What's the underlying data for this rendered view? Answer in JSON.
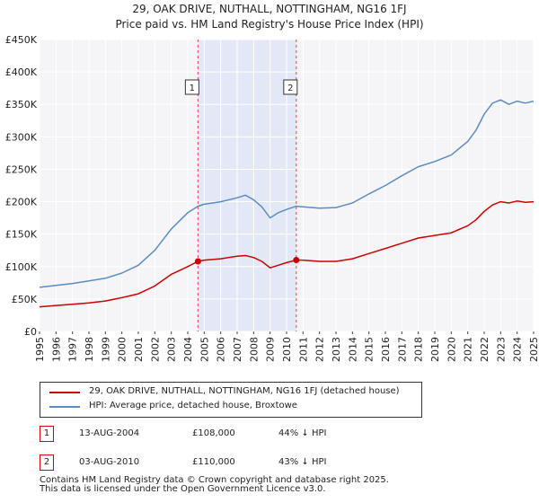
{
  "title_line1": "29, OAK DRIVE, NUTHALL, NOTTINGHAM, NG16 1FJ",
  "title_line2": "Price paid vs. HM Land Registry's House Price Index (HPI)",
  "chart_data": {
    "type": "line",
    "xlim": [
      1995,
      2025
    ],
    "ylim": [
      0,
      450000
    ],
    "y_ticks": [
      0,
      50000,
      100000,
      150000,
      200000,
      250000,
      300000,
      350000,
      400000,
      450000
    ],
    "y_tick_labels": [
      "£0",
      "£50K",
      "£100K",
      "£150K",
      "£200K",
      "£250K",
      "£300K",
      "£350K",
      "£400K",
      "£450K"
    ],
    "x_ticks": [
      1995,
      1996,
      1997,
      1998,
      1999,
      2000,
      2001,
      2002,
      2003,
      2004,
      2005,
      2006,
      2007,
      2008,
      2009,
      2010,
      2011,
      2012,
      2013,
      2014,
      2015,
      2016,
      2017,
      2018,
      2019,
      2020,
      2021,
      2022,
      2023,
      2024,
      2025
    ],
    "x_tick_labels": [
      "1995",
      "1996",
      "1997",
      "1998",
      "1999",
      "2000",
      "2001",
      "2002",
      "2003",
      "2004",
      "2005",
      "2006",
      "2007",
      "2008",
      "2009",
      "2010",
      "2011",
      "2012",
      "2013",
      "2014",
      "2015",
      "2016",
      "2017",
      "2018",
      "2019",
      "2020",
      "2021",
      "2022",
      "2023",
      "2024",
      "2025"
    ],
    "grid": true,
    "shaded_span": [
      2004.62,
      2010.59
    ],
    "series": [
      {
        "name": "29, OAK DRIVE, NUTHALL, NOTTINGHAM, NG16 1FJ (detached house)",
        "color": "#cc0000",
        "x": [
          1995,
          1996,
          1997,
          1998,
          1999,
          2000,
          2001,
          2002,
          2003,
          2004,
          2004.62,
          2005,
          2006,
          2007,
          2007.5,
          2008,
          2008.5,
          2009,
          2009.5,
          2010,
          2010.59,
          2011,
          2012,
          2013,
          2014,
          2015,
          2016,
          2017,
          2018,
          2019,
          2020,
          2021,
          2021.5,
          2022,
          2022.5,
          2023,
          2023.5,
          2024,
          2024.5,
          2025
        ],
        "values": [
          38000,
          40000,
          42000,
          44000,
          47000,
          52000,
          58000,
          70000,
          88000,
          100000,
          108000,
          110000,
          112000,
          116000,
          117000,
          114000,
          108000,
          98000,
          102000,
          106000,
          110000,
          110000,
          108000,
          108000,
          112000,
          120000,
          128000,
          136000,
          144000,
          148000,
          152000,
          163000,
          172000,
          185000,
          195000,
          200000,
          198000,
          201000,
          199000,
          200000
        ]
      },
      {
        "name": "HPI: Average price, detached house, Broxtowe",
        "color": "#5b8cc0",
        "x": [
          1995,
          1996,
          1997,
          1998,
          1999,
          2000,
          2001,
          2002,
          2003,
          2004,
          2004.62,
          2005,
          2006,
          2007,
          2007.5,
          2008,
          2008.5,
          2009,
          2009.5,
          2010,
          2010.59,
          2011,
          2012,
          2013,
          2014,
          2015,
          2016,
          2017,
          2018,
          2019,
          2020,
          2021,
          2021.5,
          2022,
          2022.5,
          2023,
          2023.5,
          2024,
          2024.5,
          2025
        ],
        "values": [
          68000,
          71000,
          74000,
          78000,
          82000,
          90000,
          102000,
          125000,
          158000,
          183000,
          193000,
          196000,
          200000,
          206000,
          210000,
          203000,
          192000,
          175000,
          183000,
          188000,
          193000,
          192000,
          190000,
          191000,
          198000,
          212000,
          225000,
          240000,
          254000,
          262000,
          272000,
          293000,
          310000,
          335000,
          352000,
          357000,
          350000,
          355000,
          352000,
          355000
        ]
      }
    ],
    "markers": [
      {
        "label": "1",
        "x": 2004.62,
        "y": 108000
      },
      {
        "label": "2",
        "x": 2010.59,
        "y": 110000
      }
    ]
  },
  "legend": {
    "entries": [
      {
        "label": "29, OAK DRIVE, NUTHALL, NOTTINGHAM, NG16 1FJ (detached house)",
        "color": "#cc0000"
      },
      {
        "label": "HPI: Average price, detached house, Broxtowe",
        "color": "#5b8cc0"
      }
    ]
  },
  "sales": [
    {
      "num": "1",
      "date": "13-AUG-2004",
      "price": "£108,000",
      "hpi": "44% ↓ HPI"
    },
    {
      "num": "2",
      "date": "03-AUG-2010",
      "price": "£110,000",
      "hpi": "43% ↓ HPI"
    }
  ],
  "footer": {
    "line1": "Contains HM Land Registry data © Crown copyright and database right 2025.",
    "line2": "This data is licensed under the Open Government Licence v3.0."
  }
}
